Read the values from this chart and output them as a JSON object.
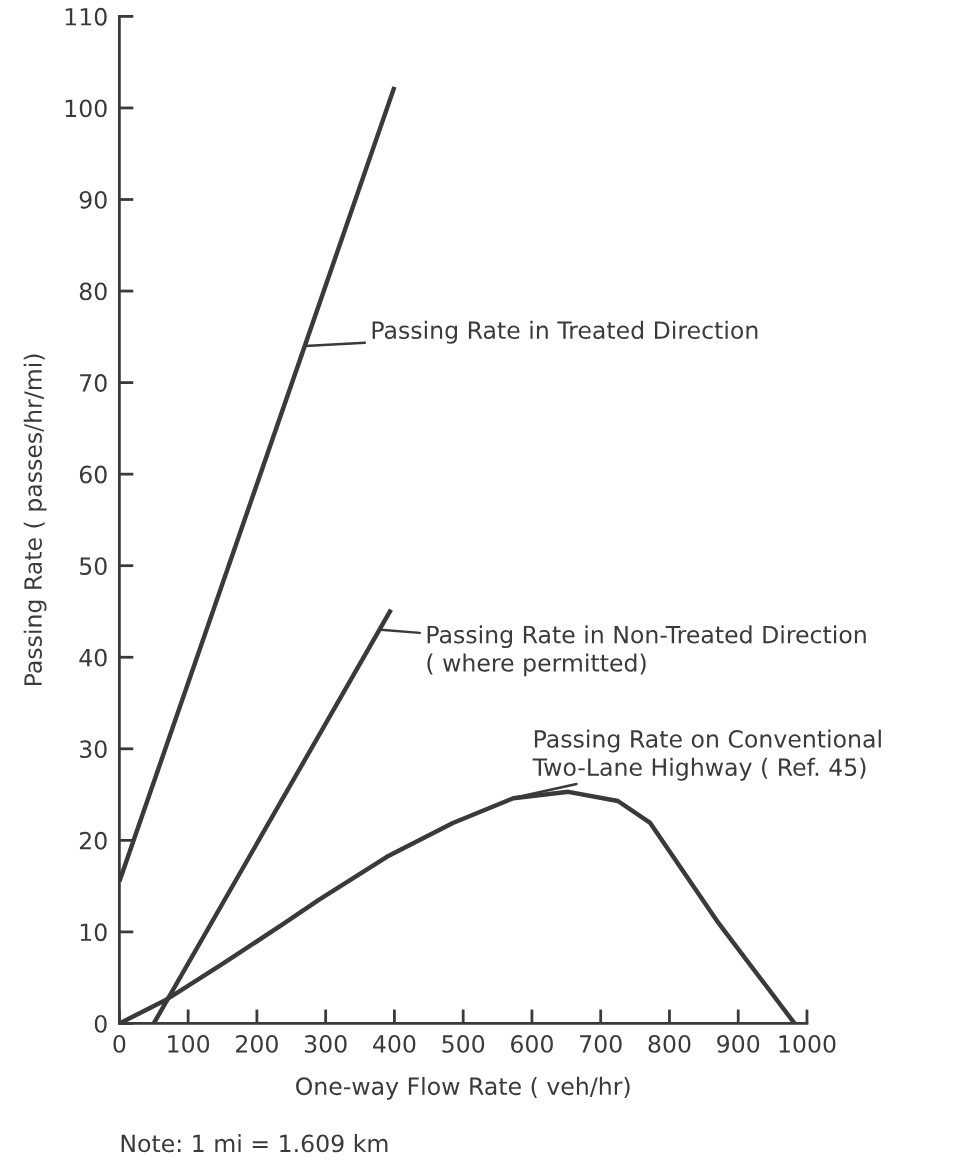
{
  "chart_data": {
    "type": "line",
    "xlabel": "One-way Flow Rate ( veh/hr)",
    "ylabel": "Passing Rate ( passes/hr/mi)",
    "xlim": [
      0,
      1000
    ],
    "ylim": [
      0,
      110
    ],
    "xticks": [
      0,
      100,
      200,
      300,
      400,
      500,
      600,
      700,
      800,
      900,
      1000
    ],
    "yticks": [
      0,
      10,
      20,
      30,
      40,
      50,
      60,
      70,
      80,
      90,
      100,
      110
    ],
    "grid": false,
    "legend": false,
    "marker": "none",
    "line_style": "solid",
    "series": [
      {
        "color": "#3a3a3a",
        "x": [
          0,
          400
        ],
        "values": [
          15.5,
          102.3
        ]
      },
      {
        "color": "#3a3a3a",
        "x": [
          50,
          395
        ],
        "values": [
          0,
          45.2
        ]
      },
      {
        "color": "#3a3a3a",
        "x": [
          0,
          66,
          150,
          239,
          290,
          389,
          485,
          573,
          653,
          725,
          772,
          872,
          982
        ],
        "values": [
          0,
          2.5,
          6.5,
          10.9,
          13.5,
          18.2,
          21.9,
          24.6,
          25.3,
          24.3,
          21.9,
          10.9,
          0
        ]
      }
    ],
    "annotations": [
      {
        "text": "Passing Rate in Treated Direction",
        "x": 270,
        "y": 74
      },
      {
        "text": "Passing Rate in Non-Treated Direction\n( where permitted)",
        "x": 380,
        "y": 43
      },
      {
        "text": "Passing Rate on Conventional\nTwo-Lane Highway ( Ref. 45)",
        "x": 571,
        "y": 24.6
      },
      "Note: 1 mi = 1.609 km"
    ]
  }
}
